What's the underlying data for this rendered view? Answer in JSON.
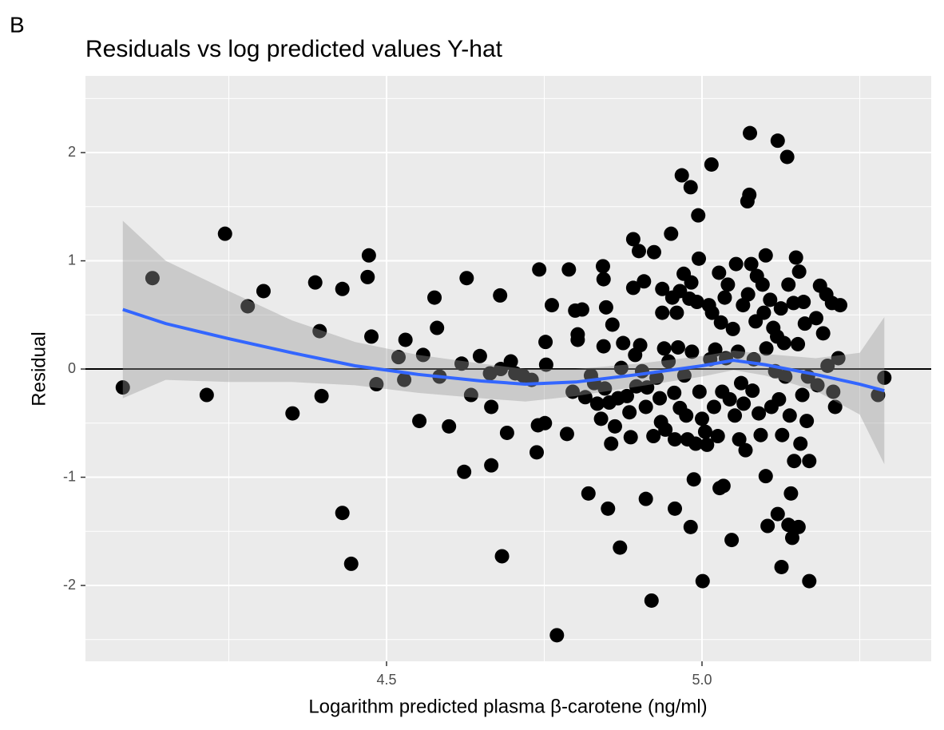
{
  "chart_data": {
    "type": "scatter",
    "tag": "B",
    "title": "Residuals vs log predicted values Y-hat",
    "x_label": "Logarithm predicted plasma β-carotene (ng/ml)",
    "y_label": "Residual",
    "color": "#000000",
    "grid": true,
    "xlim": [
      4.0228,
      5.3633
    ],
    "ylim": [
      -2.701,
      2.709
    ],
    "xticks": [
      4.5,
      {
        "value": 5,
        "label": "5.0"
      }
    ],
    "yticks": [
      -2,
      -1,
      0,
      1,
      2
    ],
    "xminor": [
      4.25,
      4.75,
      5.25
    ],
    "yminor": [
      -2.5,
      -1.5,
      -0.5,
      0.5,
      1.5,
      2.5
    ],
    "hline": 0,
    "x": [
      4.082,
      4.129,
      4.215,
      4.244,
      4.28,
      4.305,
      4.351,
      4.387,
      4.394,
      4.397,
      4.43,
      4.43,
      4.444,
      4.47,
      4.472,
      4.476,
      4.484,
      4.519,
      4.528,
      4.53,
      4.552,
      4.558,
      4.576,
      4.58,
      4.584,
      4.599,
      4.619,
      4.623,
      4.627,
      4.634,
      4.648,
      4.664,
      4.666,
      4.666,
      4.68,
      4.681,
      4.683,
      4.691,
      4.697,
      4.704,
      4.716,
      4.73,
      4.738,
      4.74,
      4.742,
      4.751,
      4.752,
      4.753,
      4.762,
      4.77,
      4.786,
      4.789,
      4.795,
      4.799,
      4.803,
      4.803,
      4.81,
      4.815,
      4.82,
      4.824,
      4.829,
      4.834,
      4.84,
      4.843,
      4.844,
      4.844,
      4.846,
      4.848,
      4.851,
      4.853,
      4.856,
      4.858,
      4.862,
      4.867,
      4.87,
      4.872,
      4.875,
      4.881,
      4.885,
      4.887,
      4.891,
      4.891,
      4.894,
      4.896,
      4.9,
      4.902,
      4.905,
      4.908,
      4.911,
      4.911,
      4.913,
      4.92,
      4.923,
      4.924,
      4.928,
      4.933,
      4.935,
      4.937,
      4.937,
      4.94,
      4.942,
      4.947,
      4.951,
      4.953,
      4.956,
      4.957,
      4.957,
      4.96,
      4.962,
      4.965,
      4.965,
      4.968,
      4.971,
      4.972,
      4.975,
      4.977,
      4.98,
      4.982,
      4.982,
      4.983,
      4.984,
      4.987,
      4.99,
      4.992,
      4.994,
      4.995,
      4.996,
      5.0,
      5.001,
      5.005,
      5.008,
      5.011,
      5.013,
      5.015,
      5.016,
      5.019,
      5.021,
      5.025,
      5.027,
      5.028,
      5.03,
      5.032,
      5.034,
      5.036,
      5.038,
      5.041,
      5.044,
      5.047,
      5.049,
      5.052,
      5.054,
      5.057,
      5.059,
      5.062,
      5.065,
      5.066,
      5.069,
      5.072,
      5.073,
      5.075,
      5.076,
      5.078,
      5.08,
      5.082,
      5.085,
      5.087,
      5.09,
      5.093,
      5.096,
      5.098,
      5.101,
      5.101,
      5.102,
      5.104,
      5.108,
      5.11,
      5.113,
      5.116,
      5.119,
      5.12,
      5.12,
      5.122,
      5.125,
      5.126,
      5.127,
      5.13,
      5.132,
      5.135,
      5.137,
      5.137,
      5.139,
      5.141,
      5.143,
      5.145,
      5.146,
      5.149,
      5.152,
      5.153,
      5.154,
      5.156,
      5.159,
      5.161,
      5.163,
      5.166,
      5.168,
      5.17,
      5.17,
      5.181,
      5.183,
      5.187,
      5.192,
      5.197,
      5.199,
      5.206,
      5.208,
      5.211,
      5.216,
      5.219,
      5.279,
      5.289
    ],
    "y": [
      -0.17,
      0.84,
      -0.24,
      1.25,
      0.58,
      0.72,
      -0.41,
      0.8,
      0.35,
      -0.25,
      0.74,
      -1.33,
      -1.8,
      0.85,
      1.05,
      0.3,
      -0.14,
      0.11,
      -0.1,
      0.27,
      -0.48,
      0.13,
      0.66,
      0.38,
      -0.07,
      -0.53,
      0.05,
      -0.95,
      0.84,
      -0.24,
      0.12,
      -0.04,
      -0.35,
      -0.89,
      0.68,
      0.0,
      -1.73,
      -0.59,
      0.07,
      -0.04,
      -0.06,
      -0.1,
      -0.77,
      -0.52,
      0.92,
      -0.5,
      0.25,
      0.04,
      0.59,
      -2.46,
      -0.6,
      0.92,
      -0.21,
      0.54,
      0.32,
      0.27,
      0.55,
      -0.26,
      -1.15,
      -0.06,
      -0.13,
      -0.32,
      -0.46,
      0.95,
      0.83,
      0.21,
      -0.18,
      0.57,
      -1.29,
      -0.31,
      -0.69,
      0.41,
      -0.53,
      -0.27,
      -1.65,
      0.01,
      0.24,
      -0.25,
      -0.4,
      -0.63,
      1.2,
      0.75,
      0.13,
      -0.16,
      1.09,
      0.22,
      -0.02,
      0.81,
      -0.35,
      -1.2,
      -0.17,
      -2.14,
      -0.62,
      1.08,
      -0.08,
      -0.27,
      -0.49,
      0.74,
      0.52,
      0.19,
      -0.56,
      0.07,
      1.25,
      0.66,
      -0.22,
      -1.29,
      -0.65,
      0.52,
      0.2,
      0.72,
      -0.36,
      1.79,
      0.88,
      -0.06,
      -0.43,
      -0.65,
      0.65,
      -1.46,
      1.68,
      0.8,
      0.16,
      -1.02,
      -0.69,
      0.62,
      1.42,
      1.02,
      -0.21,
      -0.46,
      -1.96,
      -0.58,
      -0.7,
      0.59,
      0.09,
      1.89,
      0.52,
      -0.35,
      0.18,
      -0.62,
      0.89,
      -1.1,
      0.43,
      -0.21,
      -1.08,
      0.66,
      0.1,
      0.78,
      -0.28,
      -1.58,
      0.37,
      -0.43,
      0.97,
      0.16,
      -0.65,
      -0.13,
      0.59,
      -0.32,
      -0.75,
      1.55,
      0.69,
      1.61,
      2.18,
      0.97,
      -0.2,
      0.09,
      0.44,
      0.86,
      -0.41,
      -0.61,
      0.78,
      0.52,
      1.05,
      -0.99,
      0.19,
      -1.45,
      0.64,
      -0.35,
      0.38,
      -0.02,
      0.3,
      2.11,
      -1.34,
      -0.28,
      0.56,
      -1.83,
      -0.61,
      0.24,
      -0.07,
      1.96,
      0.78,
      -1.44,
      -0.43,
      -1.15,
      -1.56,
      0.61,
      -0.85,
      1.03,
      0.23,
      -1.46,
      0.9,
      -0.69,
      -0.24,
      0.62,
      0.42,
      -0.48,
      -0.07,
      -0.85,
      -1.96,
      0.47,
      -0.15,
      0.77,
      0.33,
      0.69,
      0.03,
      0.61,
      -0.21,
      -0.35,
      0.1,
      0.59,
      -0.24,
      -0.08
    ],
    "smooth": {
      "color": "#3366ff",
      "x": [
        4.082,
        4.15,
        4.25,
        4.35,
        4.45,
        4.55,
        4.65,
        4.72,
        4.8,
        4.9,
        5.0,
        5.05,
        5.1,
        5.18,
        5.25,
        5.289
      ],
      "y": [
        0.55,
        0.42,
        0.28,
        0.15,
        0.03,
        -0.05,
        -0.11,
        -0.14,
        -0.12,
        -0.05,
        0.03,
        0.08,
        0.04,
        -0.05,
        -0.14,
        -0.2
      ],
      "lower": [
        -0.27,
        -0.1,
        -0.12,
        -0.12,
        -0.15,
        -0.22,
        -0.27,
        -0.3,
        -0.25,
        -0.16,
        -0.07,
        -0.01,
        -0.06,
        -0.2,
        -0.42,
        -0.88
      ],
      "upper": [
        1.37,
        1.0,
        0.72,
        0.45,
        0.25,
        0.13,
        0.05,
        0.0,
        0.0,
        0.05,
        0.12,
        0.17,
        0.14,
        0.1,
        0.15,
        0.48
      ]
    }
  }
}
